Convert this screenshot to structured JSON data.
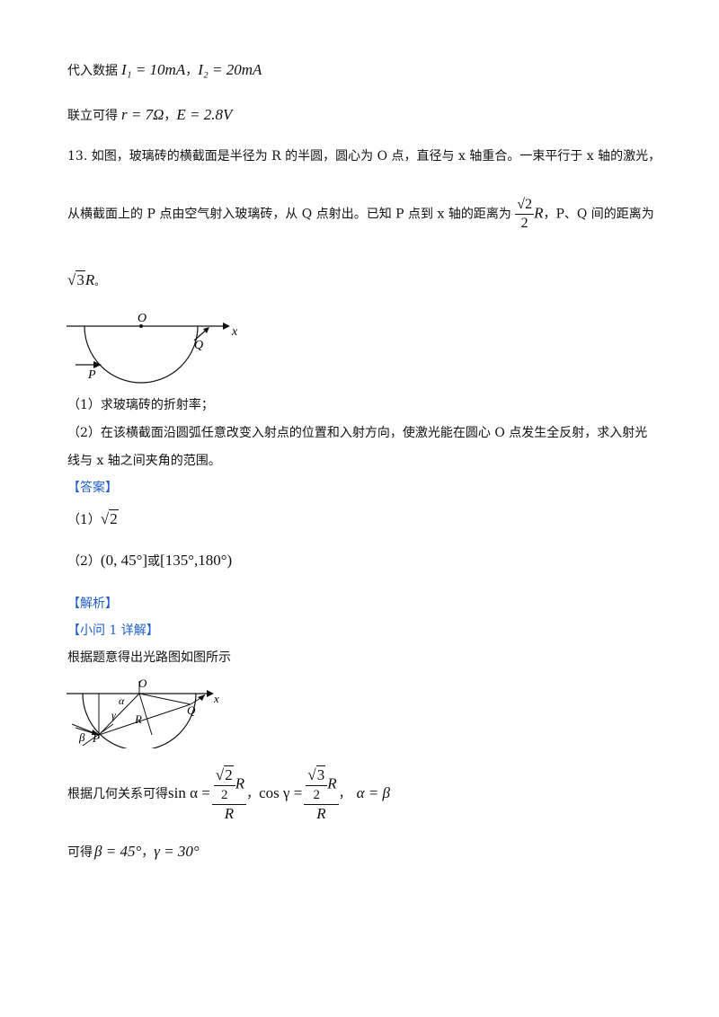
{
  "line1": {
    "prefix": "代入数据",
    "i1": "I₁ = 10mA",
    "sep": "，",
    "i2": "I₂ = 20mA"
  },
  "line2": {
    "prefix": "联立可得",
    "r": "r = 7Ω",
    "sep": "，",
    "e": "E = 2.8V"
  },
  "q13": {
    "p1": "13. 如图，玻璃砖的横截面是半径为 R 的半圆，圆心为 O 点，直径与 x 轴重合。一束平行于 x 轴的激光，",
    "p2a": "从横截面上的 P 点由空气射入玻璃砖，从 Q 点射出。已知 P 点到 x 轴的距离为",
    "frac_num": "√2",
    "frac_den": "2",
    "frac_var": "R",
    "p2b": "，P、Q 间的距离为",
    "p3_rad": "3",
    "p3_var": "R",
    "p3_end": "。",
    "fig1": {
      "O": "O",
      "x": "x",
      "Q": "Q",
      "P": "P"
    },
    "sub1": "（1）求玻璃砖的折射率；",
    "sub2a": "（2）在该横截面沿圆弧任意改变入射点的位置和入射方向，使激光能在圆心 O 点发生全反射，求入射光",
    "sub2b": "线与 x 轴之间夹角的范围。"
  },
  "answer": {
    "label": "【答案】",
    "a1_prefix": "（1）",
    "a1_val": "2",
    "a2_prefix": "（2）",
    "a2_range1": "(0, 45°]",
    "a2_or": "或",
    "a2_range2": "[135°,180°)"
  },
  "analysis": {
    "label": "【解析】",
    "sub_label": "【小问 1 详解】",
    "intro": "根据题意得出光路图如图所示",
    "fig2": {
      "O": "O",
      "x": "x",
      "alpha": "α",
      "gamma": "γ",
      "R": "R",
      "Q": "Q",
      "beta": "β",
      "P": "P"
    },
    "geo_prefix": "根据几何关系可得",
    "sin_lhs": "sin α =",
    "sin_num_rad": "2",
    "sin_num_den": "2",
    "sin_var": "R",
    "sin_den": "R",
    "comma1": "，",
    "cos_lhs": "cos γ =",
    "cos_num_rad": "3",
    "cos_num_den": "2",
    "cos_var": "R",
    "cos_den": "R",
    "comma2": "，",
    "eq": "α = β",
    "result_prefix": "可得",
    "beta_val": "β = 45°",
    "comma3": "，",
    "gamma_val": "γ = 30°"
  }
}
